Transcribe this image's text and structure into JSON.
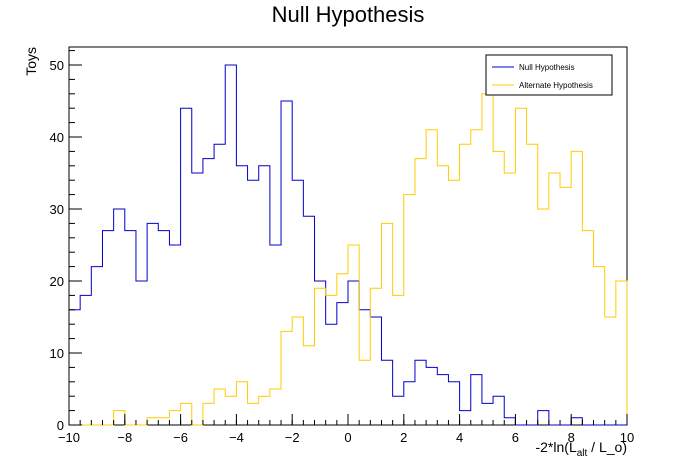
{
  "chart_data": {
    "type": "histogram",
    "title": "Null Hypothesis",
    "xlabel_parts": {
      "prefix": "-2*ln(L",
      "sub": "alt",
      "sep": " / ",
      "suffix": "L_o)"
    },
    "ylabel": "Toys",
    "xlim": [
      -10,
      10
    ],
    "ylim": [
      0,
      52.5
    ],
    "bin_width": 0.4,
    "x_ticks": [
      -10,
      -8,
      -6,
      -4,
      -2,
      0,
      2,
      4,
      6,
      8,
      10
    ],
    "y_ticks": [
      0,
      10,
      20,
      30,
      40,
      50
    ],
    "grid": false,
    "legend_position": "top-right",
    "series": [
      {
        "name": "Null Hypothesis",
        "color": "#0000cc",
        "values": [
          16,
          18,
          22,
          27,
          30,
          27,
          20,
          28,
          27,
          25,
          44,
          35,
          37,
          39,
          50,
          36,
          34,
          36,
          25,
          45,
          34,
          29,
          20,
          14,
          17,
          20,
          16,
          15,
          9,
          4,
          6,
          9,
          8,
          7,
          6,
          2,
          7,
          3,
          4,
          1,
          0,
          0,
          2,
          0,
          0,
          1,
          0,
          0,
          0,
          0
        ]
      },
      {
        "name": "Alternate Hypothesis",
        "color": "#ffcc00",
        "values": [
          0,
          0,
          0,
          0,
          2,
          0,
          0,
          1,
          1,
          2,
          3,
          0,
          3,
          5,
          4,
          6,
          3,
          4,
          5,
          13,
          15,
          11,
          19,
          18,
          21,
          25,
          9,
          19,
          28,
          18,
          32,
          37,
          41,
          36,
          34,
          39,
          41,
          46,
          38,
          35,
          44,
          39,
          30,
          35,
          33,
          38,
          27,
          22,
          15,
          20
        ]
      }
    ]
  }
}
